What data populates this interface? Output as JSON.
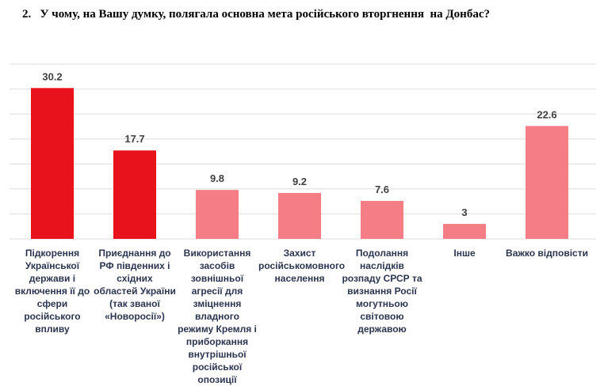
{
  "chart_data": {
    "type": "bar",
    "title": "2.   У чому, на Вашу думку, полягала основна мета російського вторгнення  на Донбас?",
    "categories": [
      "Підкорення Української держави і включення її до сфери російського впливу",
      "Приєднання до РФ південних і східних областей України (так званої «Новоросії»)",
      "Використання засобів зовнішньої агресії для зміцнення владного режиму Кремля і приборкання внутрішньої російської опозиції",
      "Захист російськомовного населення",
      "Подолання наслідків розпаду СРСР та визнання Росії могутньою світовою державою",
      "Інше",
      "Важко відповісти"
    ],
    "values": [
      30.2,
      17.7,
      9.8,
      9.2,
      7.6,
      3,
      22.6
    ],
    "colors": [
      "#e8121c",
      "#e8121c",
      "#f47d86",
      "#f47d86",
      "#f47d86",
      "#f47d86",
      "#f47d86"
    ],
    "ylim": [
      0,
      35
    ],
    "yticks": [
      0,
      5,
      10,
      15,
      20,
      25,
      30,
      35
    ],
    "grid": true
  }
}
